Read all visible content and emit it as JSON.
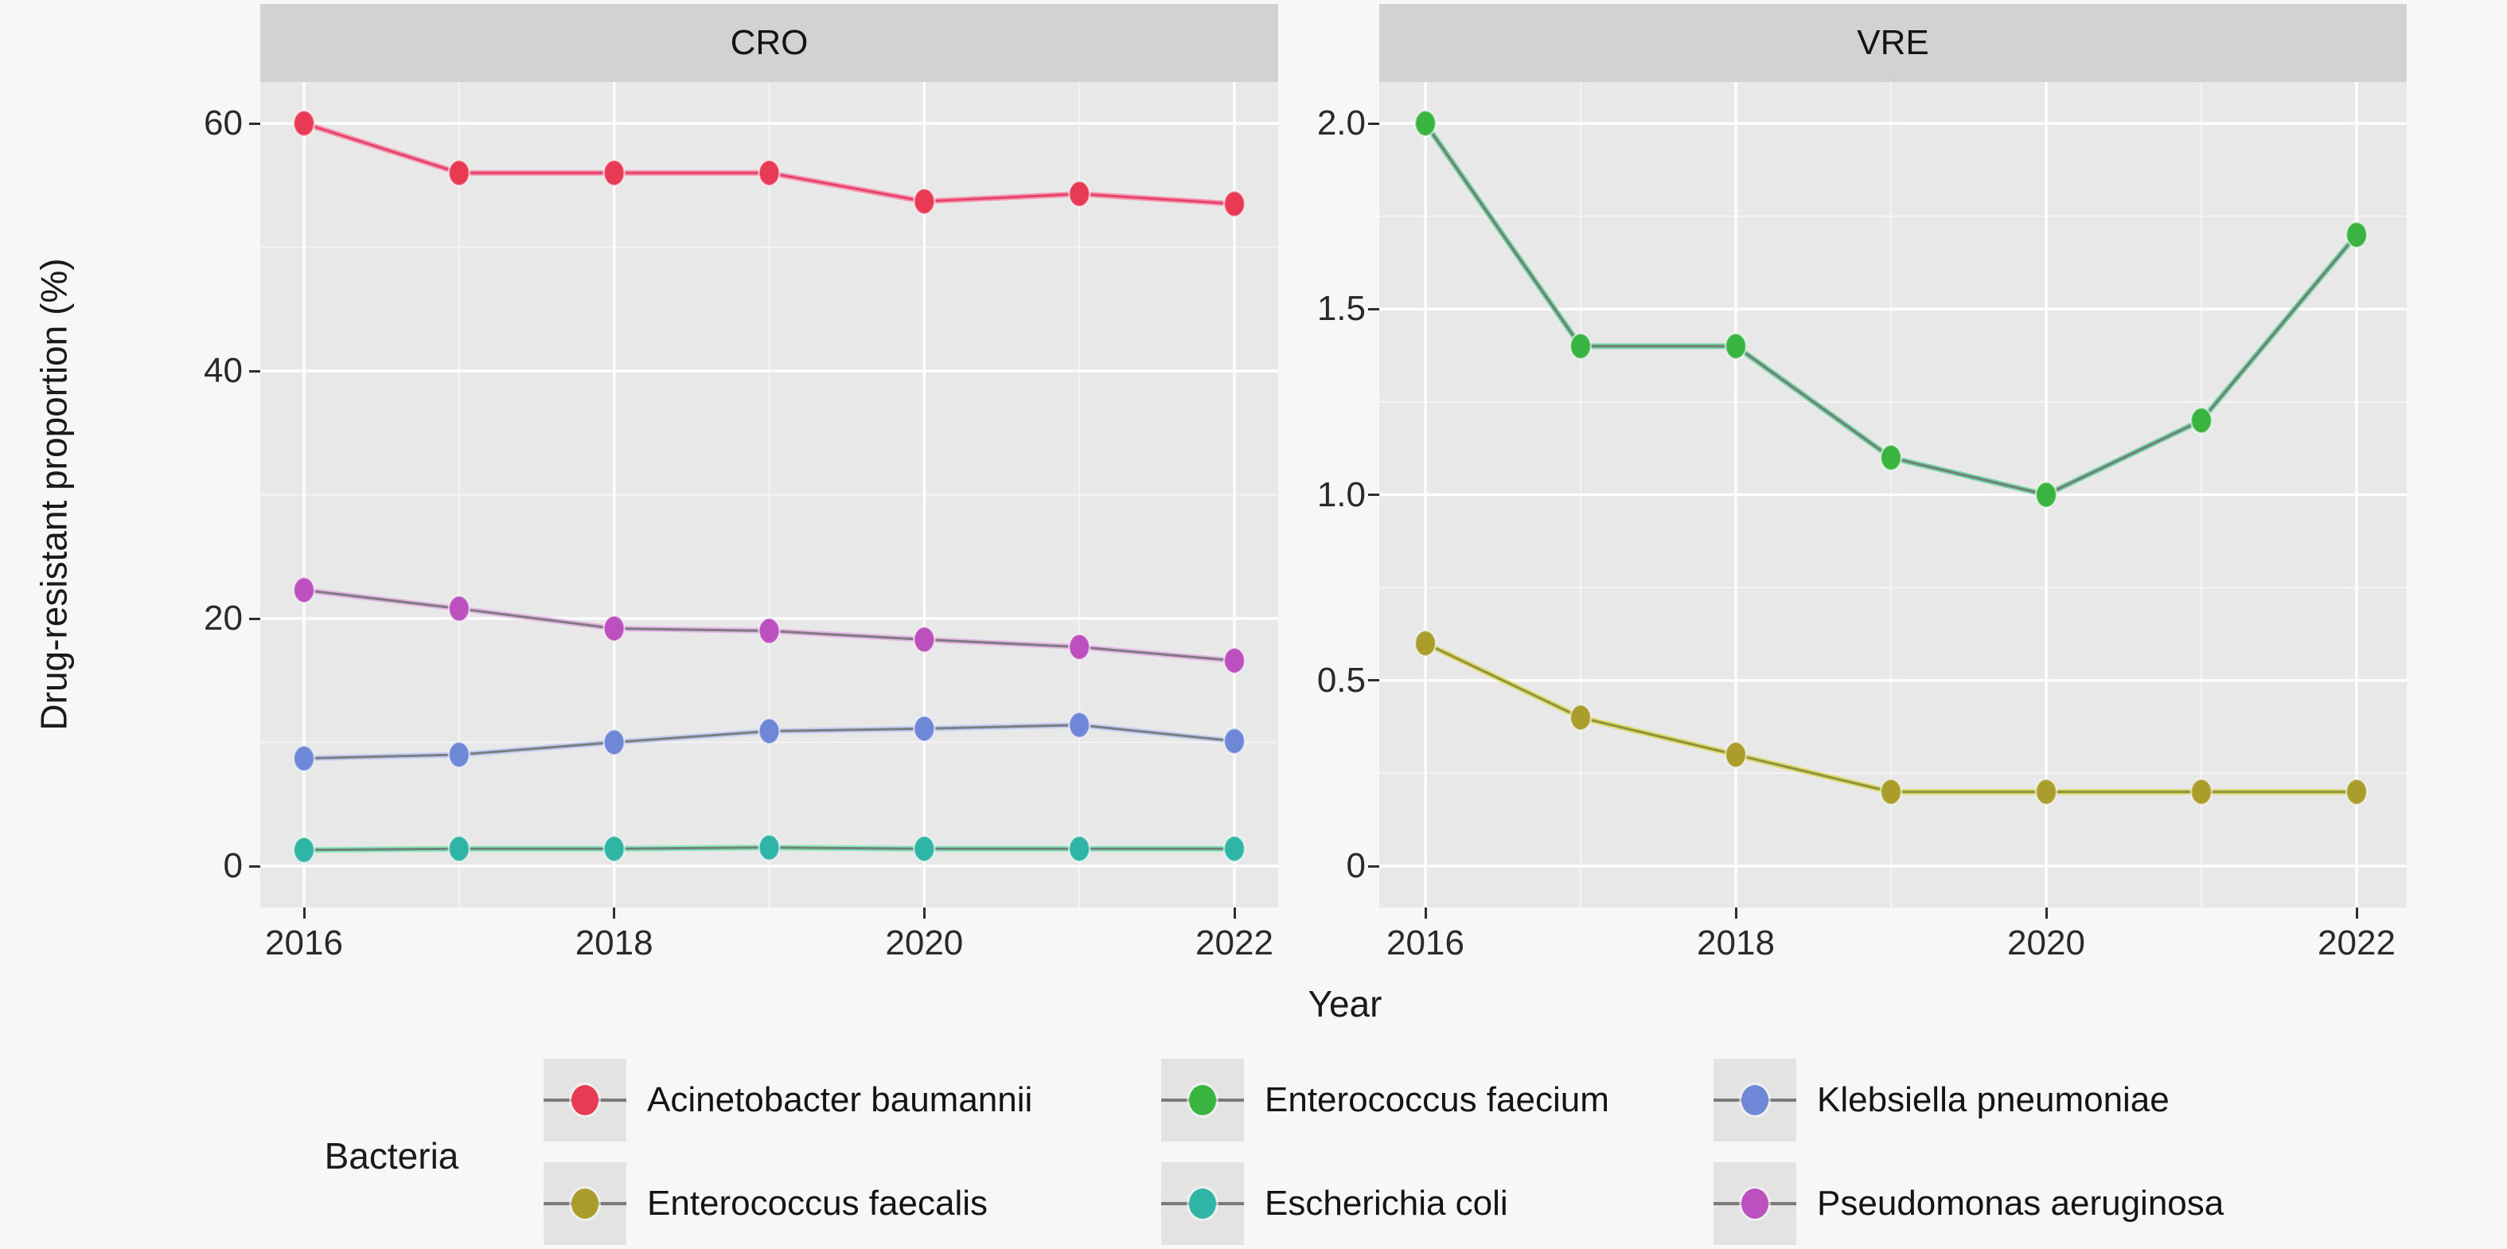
{
  "chart_data": {
    "type": "line",
    "x": [
      2016,
      2017,
      2018,
      2019,
      2020,
      2021,
      2022
    ],
    "xlabel": "Year",
    "ylabel": "Drug-resistant proportion (%)",
    "legend_title": "Bacteria",
    "grid": "on",
    "legend_position": "bottom",
    "facets": [
      {
        "title": "CRO",
        "ylim": [
          0,
          60
        ],
        "y_ticks": [
          {
            "v": 0,
            "label": "0"
          },
          {
            "v": 20,
            "label": "20"
          },
          {
            "v": 40,
            "label": "40"
          },
          {
            "v": 60,
            "label": "60"
          }
        ],
        "y_minor": [
          10,
          30,
          50
        ],
        "x_ticks": [
          {
            "v": 2016,
            "label": "2016"
          },
          {
            "v": 2018,
            "label": "2018"
          },
          {
            "v": 2020,
            "label": "2020"
          },
          {
            "v": 2022,
            "label": "2022"
          }
        ],
        "x_minor": [
          2017,
          2019,
          2021
        ],
        "series": [
          {
            "name": "Acinetobacter baumannii",
            "color": "#e93a55",
            "accent": "#f78ca6",
            "core": "#e0365f",
            "values": [
              60.0,
              56.0,
              56.0,
              56.0,
              53.7,
              54.3,
              53.5
            ]
          },
          {
            "name": "Pseudomonas aeruginosa",
            "color": "#bc50be",
            "accent": "#e2b0e5",
            "core": "#6f6f6f",
            "values": [
              22.3,
              20.8,
              19.2,
              19.0,
              18.3,
              17.7,
              16.6
            ]
          },
          {
            "name": "Klebsiella pneumoniae",
            "color": "#6e87d6",
            "accent": "#bcc9f2",
            "core": "#6f6f6f",
            "values": [
              8.7,
              9.0,
              10.0,
              10.9,
              11.1,
              11.4,
              10.1
            ]
          },
          {
            "name": "Escherichia coli",
            "color": "#2eb5a5",
            "accent": "#7be3b3",
            "core": "#6f6f6f",
            "values": [
              1.3,
              1.4,
              1.4,
              1.5,
              1.4,
              1.4,
              1.4
            ]
          }
        ]
      },
      {
        "title": "VRE",
        "ylim": [
          0,
          2.0
        ],
        "y_ticks": [
          {
            "v": 0,
            "label": "0"
          },
          {
            "v": 0.5,
            "label": "0.5"
          },
          {
            "v": 1.0,
            "label": "1.0"
          },
          {
            "v": 1.5,
            "label": "1.5"
          },
          {
            "v": 2.0,
            "label": "2.0"
          }
        ],
        "y_minor": [
          0.25,
          0.75,
          1.25,
          1.75
        ],
        "x_ticks": [
          {
            "v": 2016,
            "label": "2016"
          },
          {
            "v": 2018,
            "label": "2018"
          },
          {
            "v": 2020,
            "label": "2020"
          },
          {
            "v": 2022,
            "label": "2022"
          }
        ],
        "x_minor": [
          2017,
          2019,
          2021
        ],
        "series": [
          {
            "name": "Enterococcus faecium",
            "color": "#3ab440",
            "accent": "#67d39a",
            "core": "#6f6f6f",
            "values": [
              2.0,
              1.4,
              1.4,
              1.1,
              1.0,
              1.2,
              1.7
            ]
          },
          {
            "name": "Enterococcus faecalis",
            "color": "#ab9d2b",
            "accent": "#d9d957",
            "core": "#85813a",
            "values": [
              0.6,
              0.4,
              0.3,
              0.2,
              0.2,
              0.2,
              0.2
            ]
          }
        ]
      }
    ]
  },
  "legend": {
    "title": "Bacteria",
    "items": [
      {
        "label": "Acinetobacter baumannii",
        "color": "#e93a55"
      },
      {
        "label": "Enterococcus faecalis",
        "color": "#ab9d2b"
      },
      {
        "label": "Enterococcus faecium",
        "color": "#3ab440"
      },
      {
        "label": "Escherichia coli",
        "color": "#2eb5a5"
      },
      {
        "label": "Klebsiella pneumoniae",
        "color": "#6e87d6"
      },
      {
        "label": "Pseudomonas aeruginosa",
        "color": "#bc50be"
      }
    ]
  },
  "colors": {
    "background": "#f7f7f7",
    "panel": "#e8e8e8",
    "strip": "#d2d2d2",
    "grid_major": "#fdfdfd",
    "grid_minor": "#f4f4f4",
    "gray_line": "#6f6f6f"
  }
}
